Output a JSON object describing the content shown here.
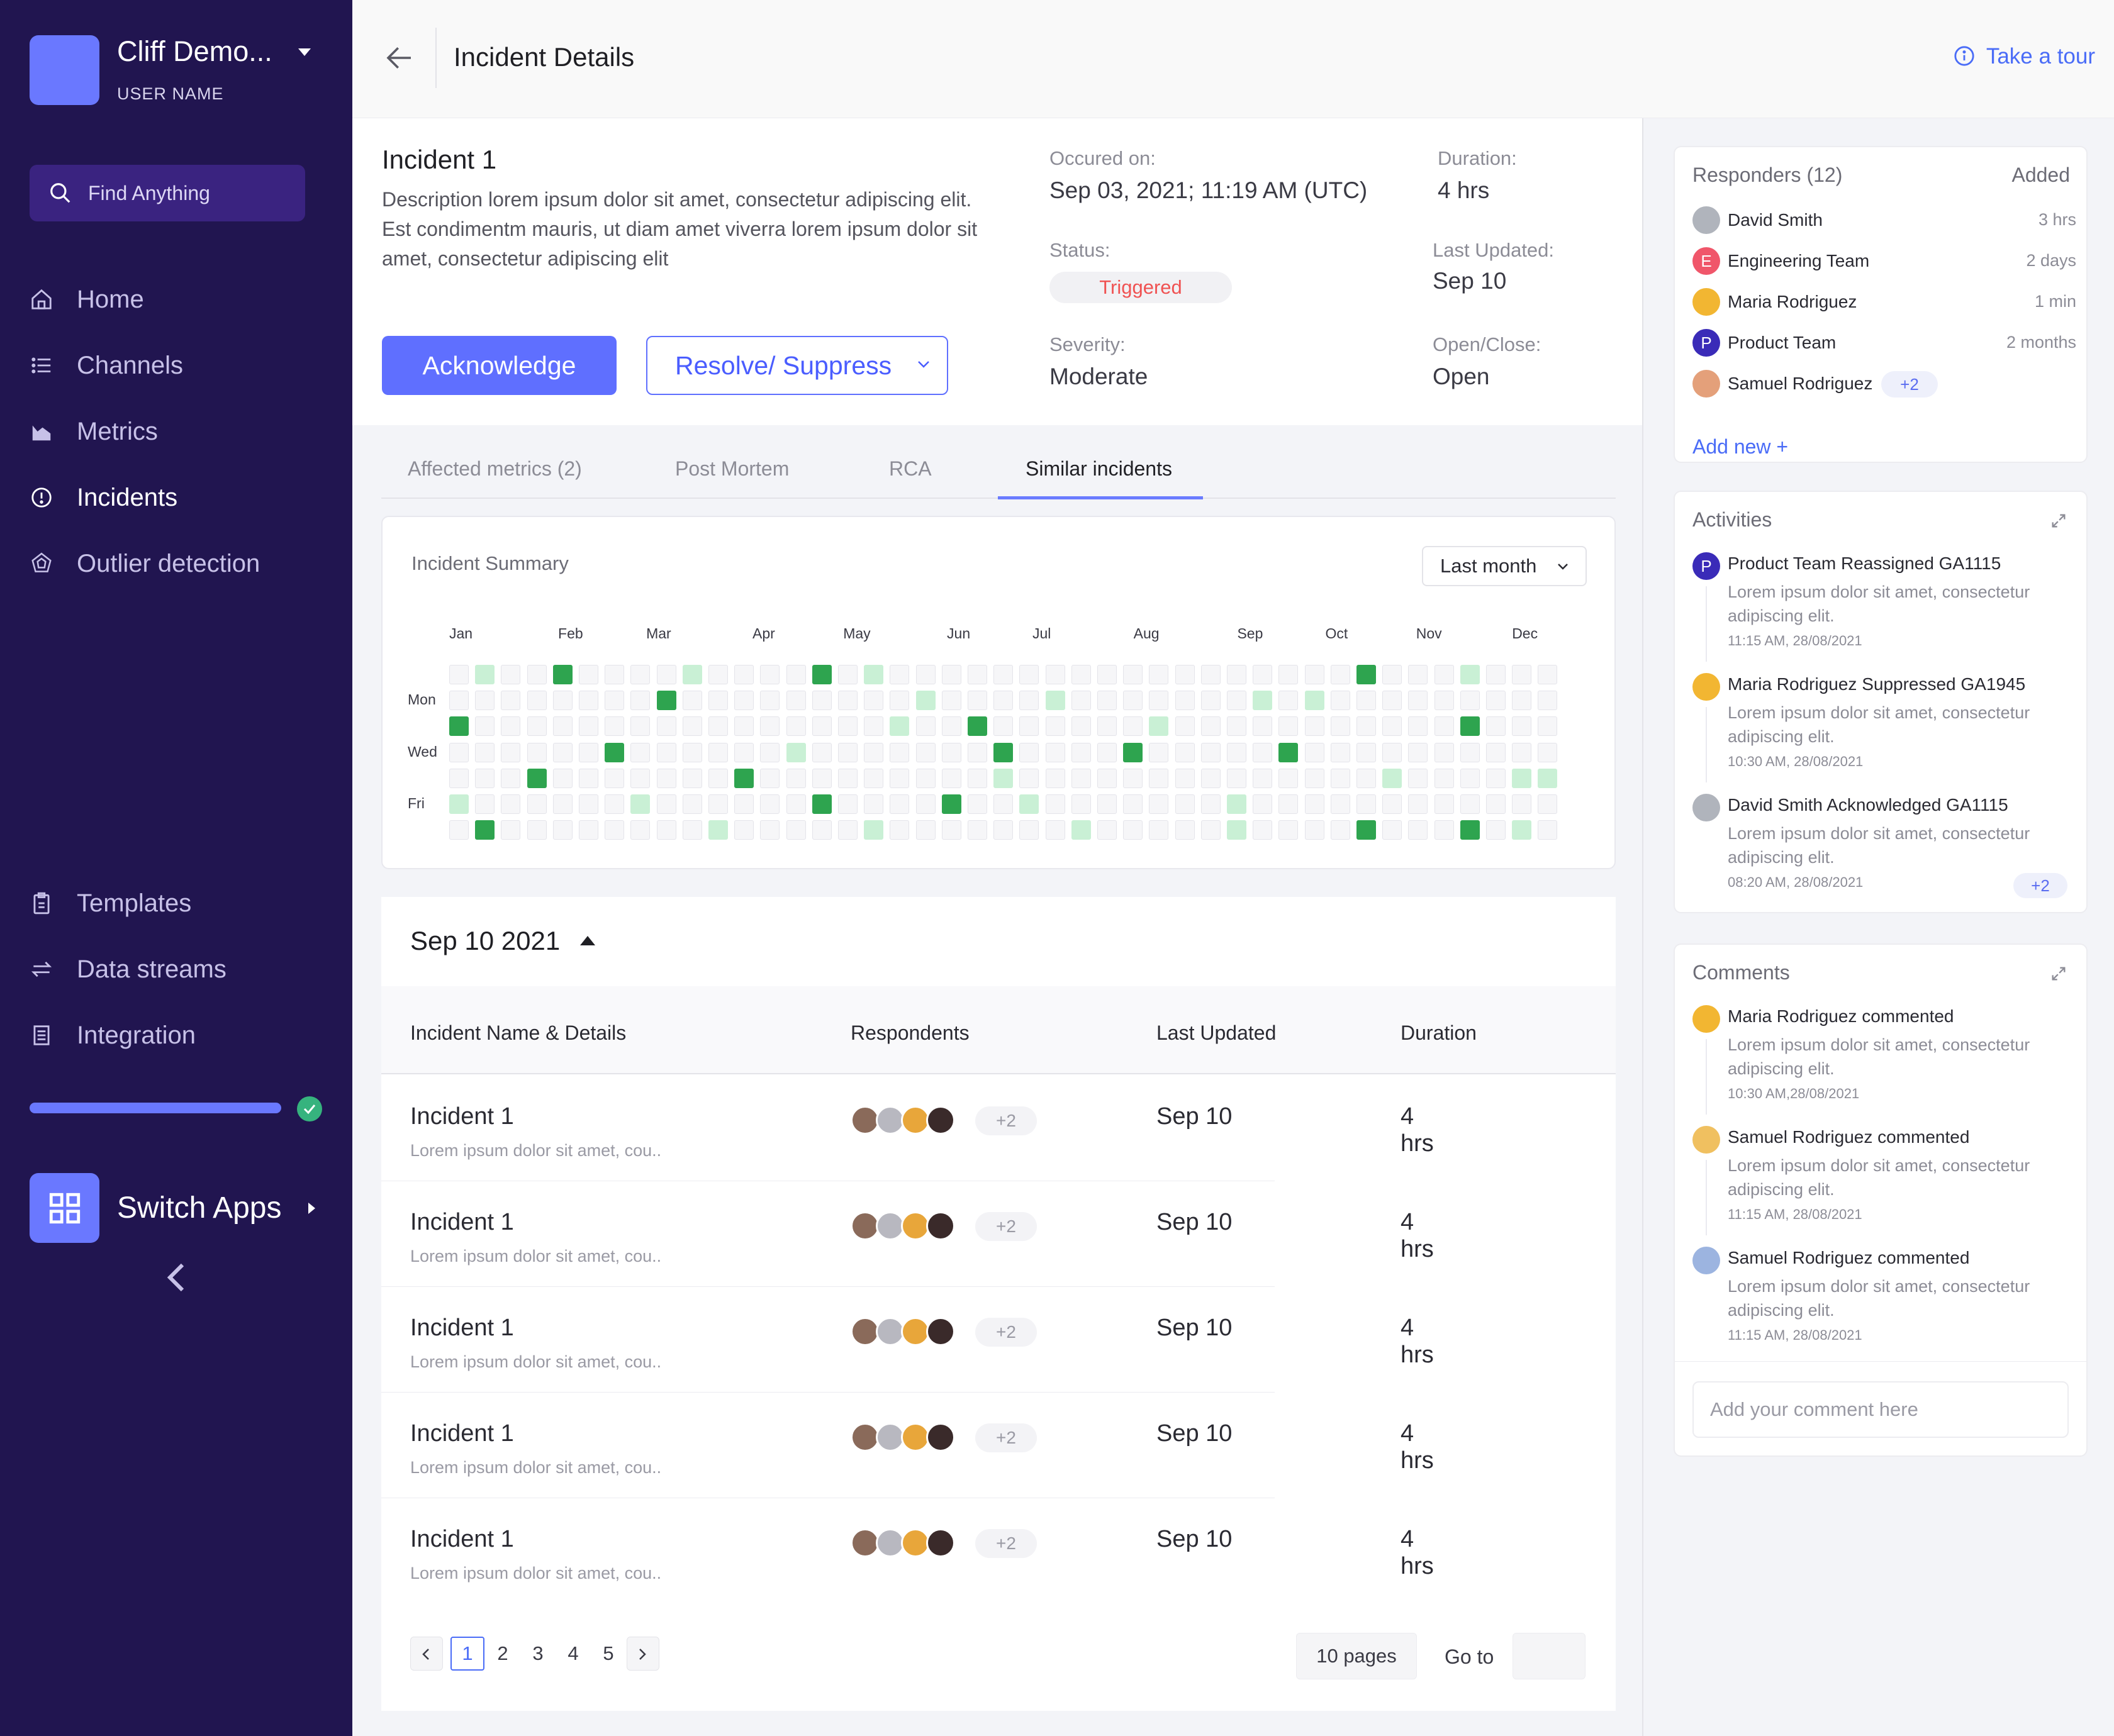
{
  "sidebar": {
    "org_name": "Cliff Demo...",
    "user_name": "USER NAME",
    "search_placeholder": "Find Anything",
    "nav": [
      {
        "label": "Home",
        "icon": "home-icon"
      },
      {
        "label": "Channels",
        "icon": "list-icon"
      },
      {
        "label": "Metrics",
        "icon": "chart-icon"
      },
      {
        "label": "Incidents",
        "icon": "alert-circle-icon",
        "active": true
      },
      {
        "label": "Outlier detection",
        "icon": "radar-icon"
      }
    ],
    "bottom_nav": [
      {
        "label": "Templates",
        "icon": "clipboard-icon"
      },
      {
        "label": "Data streams",
        "icon": "transfer-icon"
      },
      {
        "label": "Integration",
        "icon": "document-icon"
      }
    ],
    "progress": 1.0,
    "switch_apps": "Switch Apps"
  },
  "header": {
    "title": "Incident Details",
    "tour": "Take a tour"
  },
  "incident": {
    "title": "Incident 1",
    "description": "Description lorem ipsum dolor sit amet, consectetur adipiscing elit. Est condimentm mauris, ut diam amet viverra lorem ipsum dolor sit amet, consectetur adipiscing elit",
    "acknowledge": "Acknowledge",
    "resolve": "Resolve/ Suppress",
    "occurred_label": "Occured on:",
    "occurred_value": "Sep 03, 2021; 11:19 AM (UTC)",
    "duration_label": "Duration:",
    "duration_value": "4 hrs",
    "status_label": "Status:",
    "status_value": "Triggered",
    "last_updated_label": "Last Updated:",
    "last_updated_value": "Sep 10",
    "severity_label": "Severity:",
    "severity_value": "Moderate",
    "openclose_label": "Open/Close:",
    "openclose_value": "Open"
  },
  "tabs": [
    "Affected metrics (2)",
    "Post Mortem",
    "RCA",
    "Similar incidents"
  ],
  "active_tab": "Similar incidents",
  "summary": {
    "title": "Incident Summary",
    "range": "Last month",
    "months": [
      "Jan",
      "Feb",
      "Mar",
      "Apr",
      "May",
      "Jun",
      "Jul",
      "Aug",
      "Sep",
      "Oct",
      "Nov",
      "Dec"
    ],
    "days": [
      "Mon",
      "Wed",
      "Fri"
    ],
    "weeks": 43,
    "cells": [
      [
        0,
        1,
        0,
        0,
        2,
        0,
        0,
        0,
        0,
        1,
        0,
        0,
        0,
        0,
        2,
        0,
        1,
        0,
        0,
        0,
        0,
        0,
        0,
        0,
        0,
        0,
        0,
        0,
        0,
        0,
        0,
        0,
        0,
        0,
        0,
        2,
        0,
        0,
        0,
        1,
        0,
        0,
        0
      ],
      [
        0,
        0,
        0,
        0,
        0,
        0,
        0,
        0,
        2,
        0,
        0,
        0,
        0,
        0,
        0,
        0,
        0,
        0,
        1,
        0,
        0,
        0,
        0,
        1,
        0,
        0,
        0,
        0,
        0,
        0,
        0,
        1,
        0,
        1,
        0,
        0,
        0,
        0,
        0,
        0,
        0,
        0,
        0
      ],
      [
        2,
        0,
        0,
        0,
        0,
        0,
        0,
        0,
        0,
        0,
        0,
        0,
        0,
        0,
        0,
        0,
        0,
        1,
        0,
        0,
        2,
        0,
        0,
        0,
        0,
        0,
        0,
        1,
        0,
        0,
        0,
        0,
        0,
        0,
        0,
        0,
        0,
        0,
        0,
        2,
        0,
        0,
        0
      ],
      [
        0,
        0,
        0,
        0,
        0,
        0,
        2,
        0,
        0,
        0,
        0,
        0,
        0,
        1,
        0,
        0,
        0,
        0,
        0,
        0,
        0,
        2,
        0,
        0,
        0,
        0,
        2,
        0,
        0,
        0,
        0,
        0,
        2,
        0,
        0,
        0,
        0,
        0,
        0,
        0,
        0,
        0,
        0
      ],
      [
        0,
        0,
        0,
        2,
        0,
        0,
        0,
        0,
        0,
        0,
        0,
        2,
        0,
        0,
        0,
        0,
        0,
        0,
        0,
        0,
        0,
        1,
        0,
        0,
        0,
        0,
        0,
        0,
        0,
        0,
        0,
        0,
        0,
        0,
        0,
        0,
        1,
        0,
        0,
        0,
        0,
        1,
        1
      ],
      [
        1,
        0,
        0,
        0,
        0,
        0,
        0,
        1,
        0,
        0,
        0,
        0,
        0,
        0,
        2,
        0,
        0,
        0,
        0,
        2,
        0,
        0,
        1,
        0,
        0,
        0,
        0,
        0,
        0,
        0,
        1,
        0,
        0,
        0,
        0,
        0,
        0,
        0,
        0,
        0,
        0,
        0,
        0
      ],
      [
        0,
        2,
        0,
        0,
        0,
        0,
        0,
        0,
        0,
        0,
        1,
        0,
        0,
        0,
        0,
        0,
        1,
        0,
        0,
        0,
        0,
        0,
        0,
        0,
        1,
        0,
        0,
        0,
        0,
        0,
        1,
        0,
        0,
        0,
        0,
        2,
        0,
        0,
        0,
        2,
        0,
        1,
        0
      ]
    ]
  },
  "table": {
    "date": "Sep 10 2021",
    "columns": [
      "Incident Name & Details",
      "Respondents",
      "Last Updated",
      "Duration"
    ],
    "rows": [
      {
        "name": "Incident 1",
        "desc": "Lorem ipsum dolor sit amet, cou..",
        "more": "+2",
        "updated": "Sep 10",
        "duration": "4 hrs"
      },
      {
        "name": "Incident 1",
        "desc": "Lorem ipsum dolor sit amet, cou..",
        "more": "+2",
        "updated": "Sep 10",
        "duration": "4 hrs"
      },
      {
        "name": "Incident 1",
        "desc": "Lorem ipsum dolor sit amet, cou..",
        "more": "+2",
        "updated": "Sep 10",
        "duration": "4 hrs"
      },
      {
        "name": "Incident 1",
        "desc": "Lorem ipsum dolor sit amet, cou..",
        "more": "+2",
        "updated": "Sep 10",
        "duration": "4 hrs"
      },
      {
        "name": "Incident 1",
        "desc": "Lorem ipsum dolor sit amet, cou..",
        "more": "+2",
        "updated": "Sep 10",
        "duration": "4 hrs"
      }
    ],
    "pages": [
      "1",
      "2",
      "3",
      "4",
      "5"
    ],
    "current_page": "1",
    "total_pages": "10 pages",
    "goto": "Go to"
  },
  "responders": {
    "title": "Responders (12)",
    "added": "Added",
    "items": [
      {
        "name": "David Smith",
        "time": "3 hrs",
        "color": "#b0b4bc"
      },
      {
        "name": "Engineering Team",
        "time": "2 days",
        "initial": "E",
        "color": "#f0566a"
      },
      {
        "name": "Maria Rodriguez",
        "time": "1 min",
        "color": "#f2b632"
      },
      {
        "name": "Product Team",
        "time": "2 months",
        "initial": "P",
        "color": "#3a2bb8"
      },
      {
        "name": "Samuel Rodriguez",
        "more": "+2",
        "color": "#e4a07a"
      }
    ],
    "add_new": "Add new +"
  },
  "activities": {
    "title": "Activities",
    "items": [
      {
        "title": "Product Team Reassigned GA1115",
        "desc": "Lorem ipsum dolor sit amet, consectetur adipiscing elit.",
        "time": "11:15 AM, 28/08/2021",
        "initial": "P",
        "color": "#3a2bb8"
      },
      {
        "title": "Maria Rodriguez Suppressed GA1945",
        "desc": "Lorem ipsum dolor sit amet, consectetur adipiscing elit.",
        "time": "10:30 AM, 28/08/2021",
        "color": "#f2b632"
      },
      {
        "title": "David Smith Acknowledged GA1115",
        "desc": "Lorem ipsum dolor sit amet, consectetur adipiscing elit.",
        "time": "08:20 AM, 28/08/2021",
        "color": "#b0b4bc",
        "more": "+2"
      }
    ]
  },
  "comments": {
    "title": "Comments",
    "items": [
      {
        "title": "Maria Rodriguez commented",
        "desc": "Lorem ipsum dolor sit amet, consectetur adipiscing elit.",
        "time": "10:30 AM,28/08/2021",
        "color": "#f2b632"
      },
      {
        "title": "Samuel Rodriguez commented",
        "desc": "Lorem ipsum dolor sit amet, consectetur adipiscing elit.",
        "time": "11:15 AM, 28/08/2021",
        "color": "#f0c060"
      },
      {
        "title": "Samuel Rodriguez commented",
        "desc": "Lorem ipsum dolor sit amet, consectetur adipiscing elit.",
        "time": "11:15 AM, 28/08/2021",
        "color": "#9cb4e0"
      }
    ],
    "placeholder": "Add your comment here"
  },
  "colors": {
    "sidebar": "#211550",
    "accent": "#5f6fff",
    "link": "#4a6cf7",
    "heat_low": "#c9f0d5",
    "heat_high": "#2ea44f",
    "status_red": "#f05252",
    "success": "#36b37e"
  }
}
